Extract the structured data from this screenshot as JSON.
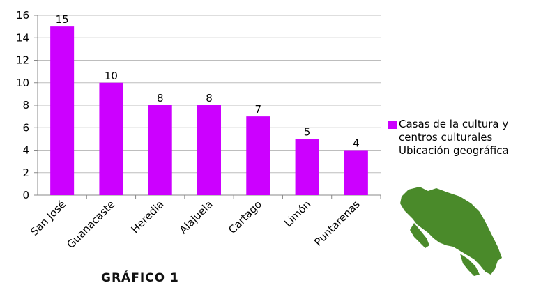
{
  "chart_data": {
    "type": "bar",
    "categories": [
      "San José",
      "Guanacaste",
      "Heredia",
      "Alajuela",
      "Cartago",
      "Limón",
      "Puntarenas"
    ],
    "series": [
      {
        "name": "Casas de la cultura y centros culturales Ubicación geográfica",
        "values": [
          15,
          10,
          8,
          8,
          7,
          5,
          4
        ]
      }
    ],
    "ylim": [
      0,
      16
    ],
    "yticks": [
      0,
      2,
      4,
      6,
      8,
      10,
      12,
      14,
      16
    ],
    "grid": true,
    "legend_position": "right",
    "data_labels": true,
    "bar_color": "#CC00FF"
  },
  "caption": "GRÁFICO 1",
  "map_color": "#4a8a2a"
}
